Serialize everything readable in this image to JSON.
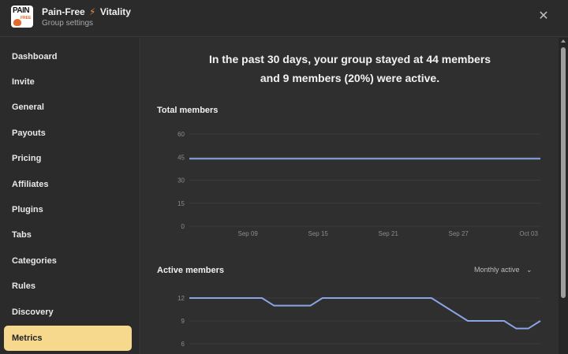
{
  "header": {
    "app_name_part1": "Pain-Free",
    "bolt_icon": "lightning-bolt-icon",
    "app_name_part2": "Vitality",
    "subtitle": "Group settings",
    "logo_text_top": "PAIN",
    "logo_text_small": "FREE",
    "close_icon": "close-icon"
  },
  "sidebar": {
    "items": [
      {
        "label": "Dashboard"
      },
      {
        "label": "Invite"
      },
      {
        "label": "General"
      },
      {
        "label": "Payouts"
      },
      {
        "label": "Pricing"
      },
      {
        "label": "Affiliates"
      },
      {
        "label": "Plugins"
      },
      {
        "label": "Tabs"
      },
      {
        "label": "Categories"
      },
      {
        "label": "Rules"
      },
      {
        "label": "Discovery"
      },
      {
        "label": "Metrics"
      }
    ],
    "active": "Metrics"
  },
  "main": {
    "headline_line1": "In the past 30 days, your group stayed at 44 members",
    "headline_line2": "and 9 members (20%) were active.",
    "total_title": "Total members",
    "active_title": "Active members",
    "active_dropdown": "Monthly active"
  },
  "colors": {
    "line": "#8aa4e6",
    "active_nav": "#f7d98d",
    "accent_bolt": "#f08a3a"
  },
  "chart_data": [
    {
      "type": "line",
      "title": "Total members",
      "ylim": [
        0,
        60
      ],
      "yticks": [
        0,
        15,
        30,
        45,
        60
      ],
      "x_ticks": [
        "Sep 09",
        "Sep 15",
        "Sep 21",
        "Sep 27",
        "Oct 03"
      ],
      "x_range_days": [
        0,
        30
      ],
      "x_tick_days": [
        5,
        11,
        17,
        23,
        29
      ],
      "series": [
        {
          "values": [
            44,
            44
          ]
        }
      ],
      "x": [
        0,
        30
      ],
      "grid": true
    },
    {
      "type": "line",
      "title": "Active members",
      "ylim": [
        6,
        12
      ],
      "yticks": [
        6,
        9,
        12
      ],
      "x": [
        0,
        6,
        7,
        10,
        11,
        20,
        23,
        26,
        27,
        28,
        29
      ],
      "series": [
        {
          "values": [
            12,
            12,
            11,
            11,
            12,
            12,
            9,
            9,
            8,
            8,
            9
          ]
        }
      ],
      "grid": true
    }
  ]
}
